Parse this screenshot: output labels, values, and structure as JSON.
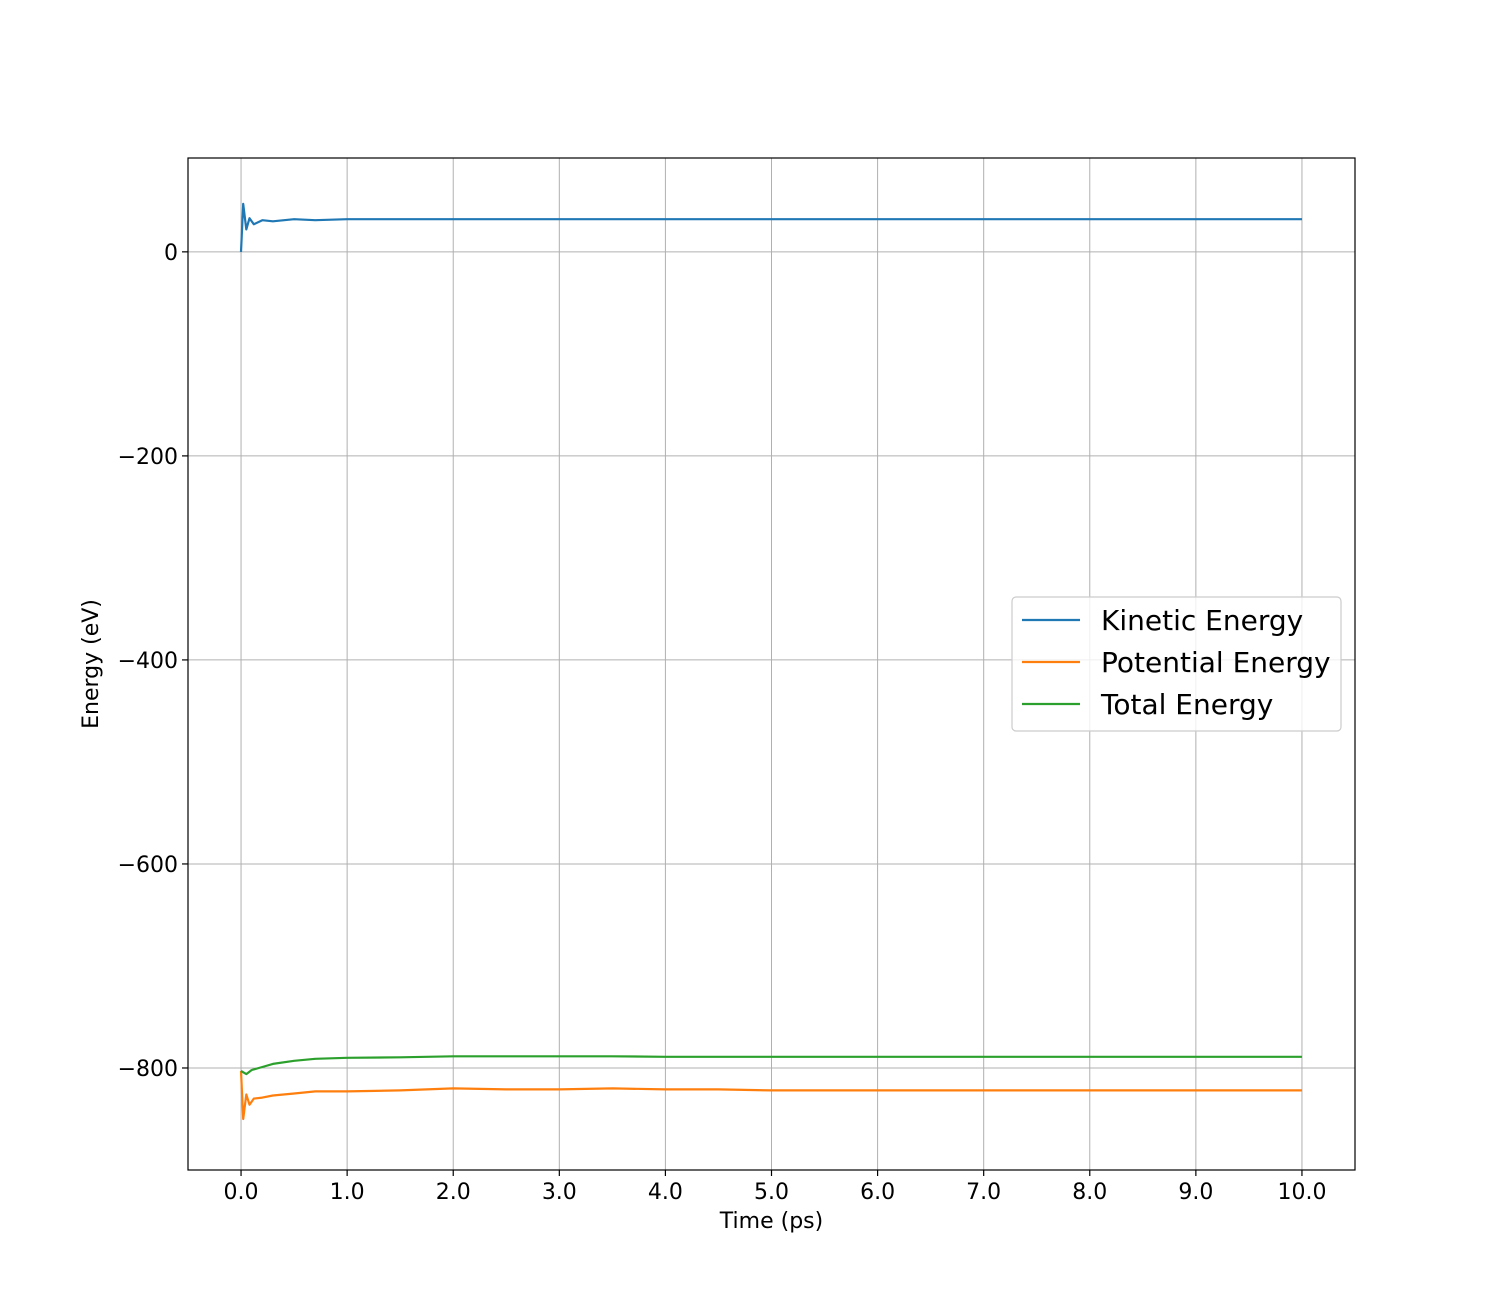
{
  "chart_data": {
    "type": "line",
    "title": "",
    "xlabel": "Time (ps)",
    "ylabel": "Energy (eV)",
    "xlim": [
      -0.5,
      10.5
    ],
    "ylim": [
      -900,
      92
    ],
    "xticks": [
      0,
      1,
      2,
      3,
      4,
      5,
      6,
      7,
      8,
      9,
      10
    ],
    "xtick_labels": [
      "0.0",
      "1.0",
      "2.0",
      "3.0",
      "4.0",
      "5.0",
      "6.0",
      "7.0",
      "8.0",
      "9.0",
      "10.0"
    ],
    "yticks": [
      0,
      -200,
      -400,
      -600,
      -800
    ],
    "ytick_labels": [
      "0",
      "−200",
      "−400",
      "−600",
      "−800"
    ],
    "grid": true,
    "legend_position": "center-right",
    "series": [
      {
        "name": "Kinetic Energy",
        "color": "#1f77b4",
        "x": [
          0.0,
          0.02,
          0.05,
          0.08,
          0.12,
          0.2,
          0.3,
          0.5,
          0.7,
          1.0,
          1.5,
          2.0,
          2.5,
          3.0,
          3.5,
          4.0,
          4.5,
          5.0,
          5.5,
          6.0,
          6.5,
          7.0,
          7.5,
          8.0,
          8.5,
          9.0,
          9.5,
          10.0
        ],
        "y": [
          0,
          47,
          22,
          33,
          27,
          31,
          30,
          32,
          31,
          32,
          32,
          32,
          32,
          32,
          32,
          32,
          32,
          32,
          32,
          32,
          32,
          32,
          32,
          32,
          32,
          32,
          32,
          32
        ]
      },
      {
        "name": "Potential Energy",
        "color": "#ff7f0e",
        "x": [
          0.0,
          0.02,
          0.05,
          0.08,
          0.12,
          0.2,
          0.3,
          0.5,
          0.7,
          1.0,
          1.5,
          2.0,
          2.5,
          3.0,
          3.5,
          4.0,
          4.5,
          5.0,
          5.5,
          6.0,
          6.5,
          7.0,
          7.5,
          8.0,
          8.5,
          9.0,
          9.5,
          10.0
        ],
        "y": [
          -803,
          -850,
          -826,
          -836,
          -830,
          -829,
          -827,
          -825,
          -823,
          -823,
          -822,
          -820,
          -821,
          -821,
          -820,
          -821,
          -821,
          -822,
          -822,
          -822,
          -822,
          -822,
          -822,
          -822,
          -822,
          -822,
          -822,
          -822
        ]
      },
      {
        "name": "Total Energy",
        "color": "#2ca02c",
        "x": [
          0.0,
          0.05,
          0.1,
          0.2,
          0.3,
          0.5,
          0.7,
          1.0,
          1.5,
          2.0,
          2.5,
          3.0,
          3.5,
          4.0,
          4.5,
          5.0,
          5.5,
          6.0,
          6.5,
          7.0,
          7.5,
          8.0,
          8.5,
          9.0,
          9.5,
          10.0
        ],
        "y": [
          -803,
          -806,
          -802,
          -799,
          -796,
          -793,
          -791,
          -790,
          -789.5,
          -788.5,
          -788.5,
          -788.5,
          -788.5,
          -789,
          -789,
          -789,
          -789,
          -789,
          -789,
          -789,
          -789,
          -789,
          -789,
          -789,
          -789,
          -789
        ]
      }
    ]
  }
}
